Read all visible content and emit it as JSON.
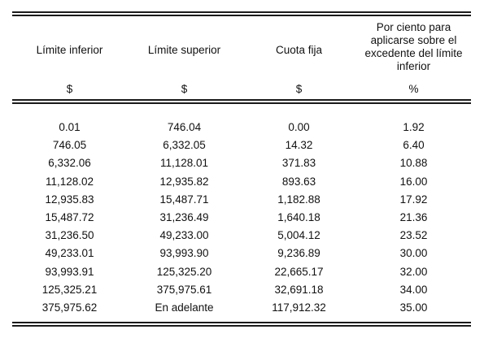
{
  "table": {
    "headers": [
      {
        "label": "Límite inferior",
        "unit": "$"
      },
      {
        "label": "Límite superior",
        "unit": "$"
      },
      {
        "label": "Cuota fija",
        "unit": "$"
      },
      {
        "label_lines": [
          "Por ciento para",
          "aplicarse sobre el",
          "excedente del límite",
          "inferior"
        ],
        "unit": "%"
      }
    ],
    "rows": [
      [
        "0.01",
        "746.04",
        "0.00",
        "1.92"
      ],
      [
        "746.05",
        "6,332.05",
        "14.32",
        "6.40"
      ],
      [
        "6,332.06",
        "11,128.01",
        "371.83",
        "10.88"
      ],
      [
        "11,128.02",
        "12,935.82",
        "893.63",
        "16.00"
      ],
      [
        "12,935.83",
        "15,487.71",
        "1,182.88",
        "17.92"
      ],
      [
        "15,487.72",
        "31,236.49",
        "1,640.18",
        "21.36"
      ],
      [
        "31,236.50",
        "49,233.00",
        "5,004.12",
        "23.52"
      ],
      [
        "49,233.01",
        "93,993.90",
        "9,236.89",
        "30.00"
      ],
      [
        "93,993.91",
        "125,325.20",
        "22,665.17",
        "32.00"
      ],
      [
        "125,325.21",
        "375,975.61",
        "32,691.18",
        "34.00"
      ],
      [
        "375,975.62",
        "En adelante",
        "117,912.32",
        "35.00"
      ]
    ]
  }
}
